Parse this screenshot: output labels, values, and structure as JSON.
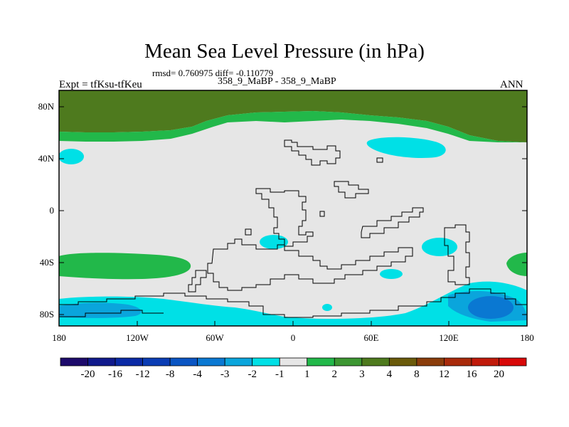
{
  "title": "Mean Sea Level Pressure (in hPa)",
  "stats_line": "rmsd= 0.760975 diff= -0.110779",
  "experiment": "Expt = tfKsu-tfKeu",
  "subtitle": "358_9_MaBP - 358_9_MaBP",
  "season": "ANN",
  "lat_ticks": [
    "80N",
    "40N",
    "0",
    "40S",
    "80S"
  ],
  "lon_ticks": [
    "180",
    "120W",
    "60W",
    "0",
    "60E",
    "120E",
    "180"
  ],
  "colorbar": {
    "labels": [
      "-20",
      "-16",
      "-12",
      "-8",
      "-4",
      "-3",
      "-2",
      "-1",
      "1",
      "2",
      "3",
      "4",
      "8",
      "12",
      "16",
      "20"
    ],
    "colors": [
      "#1d0a6b",
      "#101a8c",
      "#0a2aa5",
      "#0a3cb4",
      "#0a55c3",
      "#0a78d2",
      "#0aa5dc",
      "#00e0e6",
      "#e6e6e6",
      "#22b84a",
      "#3c9632",
      "#4e7a1e",
      "#6a5a0a",
      "#8a3c0a",
      "#a82a0a",
      "#c01a0a",
      "#d80808"
    ]
  },
  "map_colors": {
    "background": "#e6e6e6",
    "cyan": "#00e0e6",
    "light_blue": "#0aa5dc",
    "mid_blue": "#0a78d2",
    "green": "#22b84a",
    "olive": "#4e7a1e"
  }
}
